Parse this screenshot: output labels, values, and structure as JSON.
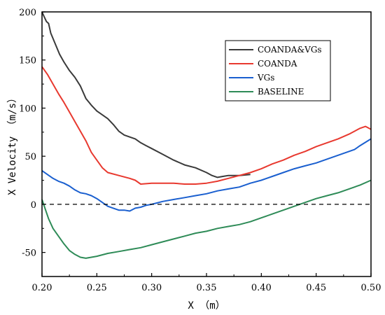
{
  "chart_data": {
    "type": "line",
    "xlabel": "X （m）",
    "ylabel": "X Velocity （m/s）",
    "xlim": [
      0.2,
      0.5
    ],
    "ylim": [
      -75,
      200
    ],
    "xticks": [
      "0.20",
      "0.25",
      "0.30",
      "0.35",
      "0.40",
      "0.45",
      "0.50"
    ],
    "yticks": [
      "-50",
      "0",
      "50",
      "100",
      "150",
      "200"
    ],
    "grid": false,
    "legend_position": "top-right",
    "reference_line": {
      "y": 0,
      "style": "dashed"
    },
    "series": [
      {
        "name": "COANDA&VGs",
        "color": "#3a3a3a",
        "points": [
          [
            0.2,
            200
          ],
          [
            0.202,
            195
          ],
          [
            0.204,
            190
          ],
          [
            0.206,
            188
          ],
          [
            0.208,
            178
          ],
          [
            0.212,
            167
          ],
          [
            0.216,
            156
          ],
          [
            0.22,
            148
          ],
          [
            0.225,
            139
          ],
          [
            0.23,
            132
          ],
          [
            0.235,
            123
          ],
          [
            0.24,
            110
          ],
          [
            0.245,
            103
          ],
          [
            0.25,
            97
          ],
          [
            0.255,
            93
          ],
          [
            0.26,
            89
          ],
          [
            0.265,
            83
          ],
          [
            0.27,
            76
          ],
          [
            0.275,
            72
          ],
          [
            0.28,
            70
          ],
          [
            0.285,
            68
          ],
          [
            0.29,
            64
          ],
          [
            0.295,
            61
          ],
          [
            0.3,
            58
          ],
          [
            0.31,
            52
          ],
          [
            0.32,
            46
          ],
          [
            0.33,
            41
          ],
          [
            0.34,
            38
          ],
          [
            0.35,
            33
          ],
          [
            0.355,
            30
          ],
          [
            0.36,
            28
          ],
          [
            0.365,
            29
          ],
          [
            0.37,
            30
          ],
          [
            0.38,
            30
          ],
          [
            0.39,
            31
          ]
        ]
      },
      {
        "name": "COANDA",
        "color": "#e8392f",
        "points": [
          [
            0.2,
            143
          ],
          [
            0.205,
            135
          ],
          [
            0.21,
            125
          ],
          [
            0.215,
            115
          ],
          [
            0.22,
            106
          ],
          [
            0.225,
            96
          ],
          [
            0.23,
            86
          ],
          [
            0.235,
            76
          ],
          [
            0.24,
            66
          ],
          [
            0.245,
            54
          ],
          [
            0.25,
            46
          ],
          [
            0.255,
            38
          ],
          [
            0.26,
            33
          ],
          [
            0.27,
            30
          ],
          [
            0.28,
            27
          ],
          [
            0.285,
            25
          ],
          [
            0.29,
            21
          ],
          [
            0.3,
            22
          ],
          [
            0.31,
            22
          ],
          [
            0.32,
            22
          ],
          [
            0.33,
            21
          ],
          [
            0.34,
            21
          ],
          [
            0.35,
            22
          ],
          [
            0.36,
            24
          ],
          [
            0.37,
            27
          ],
          [
            0.38,
            30
          ],
          [
            0.39,
            33
          ],
          [
            0.4,
            37
          ],
          [
            0.41,
            42
          ],
          [
            0.42,
            46
          ],
          [
            0.43,
            51
          ],
          [
            0.44,
            55
          ],
          [
            0.45,
            60
          ],
          [
            0.46,
            64
          ],
          [
            0.47,
            68
          ],
          [
            0.48,
            73
          ],
          [
            0.49,
            79
          ],
          [
            0.495,
            81
          ],
          [
            0.5,
            78
          ]
        ]
      },
      {
        "name": "VGs",
        "color": "#1a5fcf",
        "points": [
          [
            0.2,
            35
          ],
          [
            0.205,
            31
          ],
          [
            0.21,
            27
          ],
          [
            0.215,
            24
          ],
          [
            0.22,
            22
          ],
          [
            0.225,
            19
          ],
          [
            0.23,
            15
          ],
          [
            0.235,
            12
          ],
          [
            0.24,
            11
          ],
          [
            0.245,
            9
          ],
          [
            0.25,
            6
          ],
          [
            0.255,
            2
          ],
          [
            0.26,
            -2
          ],
          [
            0.265,
            -4
          ],
          [
            0.27,
            -6
          ],
          [
            0.275,
            -6
          ],
          [
            0.28,
            -7
          ],
          [
            0.285,
            -4
          ],
          [
            0.29,
            -3
          ],
          [
            0.295,
            -1
          ],
          [
            0.3,
            0
          ],
          [
            0.31,
            3
          ],
          [
            0.32,
            5
          ],
          [
            0.33,
            7
          ],
          [
            0.34,
            9
          ],
          [
            0.35,
            11
          ],
          [
            0.36,
            14
          ],
          [
            0.37,
            16
          ],
          [
            0.38,
            18
          ],
          [
            0.39,
            22
          ],
          [
            0.4,
            25
          ],
          [
            0.41,
            29
          ],
          [
            0.42,
            33
          ],
          [
            0.43,
            37
          ],
          [
            0.44,
            40
          ],
          [
            0.45,
            43
          ],
          [
            0.46,
            47
          ],
          [
            0.47,
            51
          ],
          [
            0.48,
            55
          ],
          [
            0.485,
            57
          ],
          [
            0.49,
            61
          ],
          [
            0.5,
            68
          ]
        ]
      },
      {
        "name": "BASELINE",
        "color": "#2e8b57",
        "points": [
          [
            0.2,
            5
          ],
          [
            0.203,
            -5
          ],
          [
            0.206,
            -15
          ],
          [
            0.21,
            -25
          ],
          [
            0.215,
            -33
          ],
          [
            0.22,
            -41
          ],
          [
            0.225,
            -48
          ],
          [
            0.23,
            -52
          ],
          [
            0.235,
            -55
          ],
          [
            0.24,
            -56
          ],
          [
            0.245,
            -55
          ],
          [
            0.25,
            -54
          ],
          [
            0.26,
            -51
          ],
          [
            0.27,
            -49
          ],
          [
            0.28,
            -47
          ],
          [
            0.29,
            -45
          ],
          [
            0.3,
            -42
          ],
          [
            0.31,
            -39
          ],
          [
            0.32,
            -36
          ],
          [
            0.33,
            -33
          ],
          [
            0.34,
            -30
          ],
          [
            0.35,
            -28
          ],
          [
            0.36,
            -25
          ],
          [
            0.37,
            -23
          ],
          [
            0.38,
            -21
          ],
          [
            0.39,
            -18
          ],
          [
            0.4,
            -14
          ],
          [
            0.41,
            -10
          ],
          [
            0.42,
            -6
          ],
          [
            0.43,
            -2
          ],
          [
            0.44,
            2
          ],
          [
            0.45,
            6
          ],
          [
            0.46,
            9
          ],
          [
            0.47,
            12
          ],
          [
            0.48,
            16
          ],
          [
            0.49,
            20
          ],
          [
            0.5,
            25
          ]
        ]
      }
    ]
  }
}
